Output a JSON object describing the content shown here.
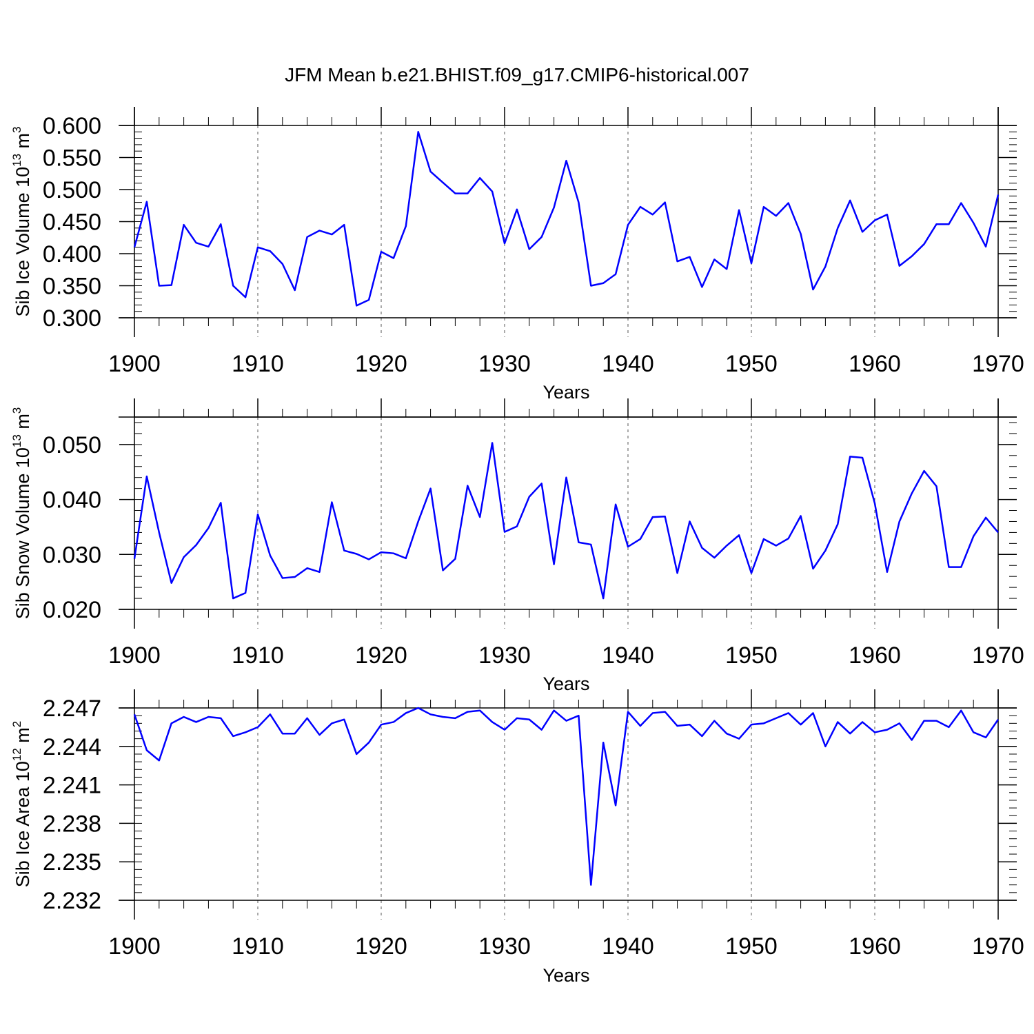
{
  "title": "JFM Mean b.e21.BHIST.f09_g17.CMIP6-historical.007",
  "colors": {
    "line": "#0000ff",
    "axis": "#000000",
    "grid": "#555555"
  },
  "chart_data": [
    {
      "type": "line",
      "ylabel": {
        "text": "Sib Ice Volume 10",
        "exp": "13",
        "unit": " m",
        "unit_exp": "3"
      },
      "xlabel": "Years",
      "xlim": [
        1900,
        1970
      ],
      "ylim": [
        0.3,
        0.6
      ],
      "yticks": [
        0.3,
        0.35,
        0.4,
        0.45,
        0.5,
        0.55,
        0.6
      ],
      "ytick_labels": [
        "0.300",
        "0.350",
        "0.400",
        "0.450",
        "0.500",
        "0.550",
        "0.600"
      ],
      "xticks": [
        1900,
        1910,
        1920,
        1930,
        1940,
        1950,
        1960,
        1970
      ],
      "xtick_labels": [
        "1900",
        "1910",
        "1920",
        "1930",
        "1940",
        "1950",
        "1960",
        "1970"
      ],
      "grid": "vertical dashed",
      "x": [
        1900,
        1901,
        1902,
        1903,
        1904,
        1905,
        1906,
        1907,
        1908,
        1909,
        1910,
        1911,
        1912,
        1913,
        1914,
        1915,
        1916,
        1917,
        1918,
        1919,
        1920,
        1921,
        1922,
        1923,
        1924,
        1925,
        1926,
        1927,
        1928,
        1929,
        1930,
        1931,
        1932,
        1933,
        1934,
        1935,
        1936,
        1937,
        1938,
        1939,
        1940,
        1941,
        1942,
        1943,
        1944,
        1945,
        1946,
        1947,
        1948,
        1949,
        1950,
        1951,
        1952,
        1953,
        1954,
        1955,
        1956,
        1957,
        1958,
        1959,
        1960,
        1961,
        1962,
        1963,
        1964,
        1965,
        1966,
        1967,
        1968,
        1969,
        1970
      ],
      "series": [
        {
          "values": [
            0.41,
            0.481,
            0.35,
            0.351,
            0.445,
            0.417,
            0.411,
            0.446,
            0.35,
            0.332,
            0.41,
            0.404,
            0.384,
            0.343,
            0.426,
            0.436,
            0.43,
            0.445,
            0.319,
            0.328,
            0.403,
            0.393,
            0.443,
            0.59,
            0.528,
            0.511,
            0.494,
            0.494,
            0.518,
            0.497,
            0.416,
            0.469,
            0.407,
            0.426,
            0.472,
            0.545,
            0.48,
            0.35,
            0.354,
            0.368,
            0.445,
            0.473,
            0.461,
            0.48,
            0.388,
            0.395,
            0.348,
            0.391,
            0.376,
            0.468,
            0.385,
            0.473,
            0.459,
            0.479,
            0.431,
            0.344,
            0.38,
            0.44,
            0.483,
            0.434,
            0.452,
            0.461,
            0.381,
            0.396,
            0.415,
            0.446,
            0.446,
            0.479,
            0.448,
            0.411,
            0.492
          ]
        }
      ]
    },
    {
      "type": "line",
      "ylabel": {
        "text": "Sib Snow Volume 10",
        "exp": "13",
        "unit": " m",
        "unit_exp": "3"
      },
      "xlabel": "Years",
      "xlim": [
        1900,
        1970
      ],
      "ylim": [
        0.02,
        0.055
      ],
      "yticks": [
        0.02,
        0.03,
        0.04,
        0.05
      ],
      "ytick_labels": [
        "0.020",
        "0.030",
        "0.040",
        "0.050"
      ],
      "xticks": [
        1900,
        1910,
        1920,
        1930,
        1940,
        1950,
        1960,
        1970
      ],
      "xtick_labels": [
        "1900",
        "1910",
        "1920",
        "1930",
        "1940",
        "1950",
        "1960",
        "1970"
      ],
      "grid": "vertical dashed",
      "x": [
        1900,
        1901,
        1902,
        1903,
        1904,
        1905,
        1906,
        1907,
        1908,
        1909,
        1910,
        1911,
        1912,
        1913,
        1914,
        1915,
        1916,
        1917,
        1918,
        1919,
        1920,
        1921,
        1922,
        1923,
        1924,
        1925,
        1926,
        1927,
        1928,
        1929,
        1930,
        1931,
        1932,
        1933,
        1934,
        1935,
        1936,
        1937,
        1938,
        1939,
        1940,
        1941,
        1942,
        1943,
        1944,
        1945,
        1946,
        1947,
        1948,
        1949,
        1950,
        1951,
        1952,
        1953,
        1954,
        1955,
        1956,
        1957,
        1958,
        1959,
        1960,
        1961,
        1962,
        1963,
        1964,
        1965,
        1966,
        1967,
        1968,
        1969,
        1970
      ],
      "series": [
        {
          "values": [
            0.0292,
            0.0442,
            0.034,
            0.0248,
            0.0295,
            0.0317,
            0.0348,
            0.0394,
            0.022,
            0.023,
            0.0373,
            0.0298,
            0.0257,
            0.0259,
            0.0275,
            0.0268,
            0.0395,
            0.0307,
            0.0301,
            0.0291,
            0.0304,
            0.0302,
            0.0293,
            0.036,
            0.042,
            0.0271,
            0.0292,
            0.0425,
            0.0368,
            0.0503,
            0.0341,
            0.0351,
            0.0405,
            0.0429,
            0.0282,
            0.044,
            0.0322,
            0.0318,
            0.022,
            0.0391,
            0.0314,
            0.0328,
            0.0368,
            0.0369,
            0.0266,
            0.036,
            0.0312,
            0.0294,
            0.0316,
            0.0335,
            0.0266,
            0.0328,
            0.0316,
            0.0329,
            0.037,
            0.0274,
            0.0307,
            0.0355,
            0.0478,
            0.0476,
            0.0393,
            0.0268,
            0.036,
            0.0411,
            0.0452,
            0.0424,
            0.0277,
            0.0277,
            0.0333,
            0.0367,
            0.034
          ]
        }
      ]
    },
    {
      "type": "line",
      "ylabel": {
        "text": "Sib Ice Area 10",
        "exp": "12",
        "unit": " m",
        "unit_exp": "2"
      },
      "xlabel": "Years",
      "xlim": [
        1900,
        1970
      ],
      "ylim": [
        2.232,
        2.247
      ],
      "yticks": [
        2.232,
        2.235,
        2.238,
        2.241,
        2.244,
        2.247
      ],
      "ytick_labels": [
        "2.232",
        "2.235",
        "2.238",
        "2.241",
        "2.244",
        "2.247"
      ],
      "xticks": [
        1900,
        1910,
        1920,
        1930,
        1940,
        1950,
        1960,
        1970
      ],
      "xtick_labels": [
        "1900",
        "1910",
        "1920",
        "1930",
        "1940",
        "1950",
        "1960",
        "1970"
      ],
      "grid": "vertical dashed",
      "x": [
        1900,
        1901,
        1902,
        1903,
        1904,
        1905,
        1906,
        1907,
        1908,
        1909,
        1910,
        1911,
        1912,
        1913,
        1914,
        1915,
        1916,
        1917,
        1918,
        1919,
        1920,
        1921,
        1922,
        1923,
        1924,
        1925,
        1926,
        1927,
        1928,
        1929,
        1930,
        1931,
        1932,
        1933,
        1934,
        1935,
        1936,
        1937,
        1938,
        1939,
        1940,
        1941,
        1942,
        1943,
        1944,
        1945,
        1946,
        1947,
        1948,
        1949,
        1950,
        1951,
        1952,
        1953,
        1954,
        1955,
        1956,
        1957,
        1958,
        1959,
        1960,
        1961,
        1962,
        1963,
        1964,
        1965,
        1966,
        1967,
        1968,
        1969,
        1970
      ],
      "series": [
        {
          "values": [
            2.2465,
            2.2437,
            2.2429,
            2.2458,
            2.2463,
            2.2459,
            2.2463,
            2.2462,
            2.2448,
            2.2451,
            2.2455,
            2.2465,
            2.245,
            2.245,
            2.2462,
            2.2449,
            2.2458,
            2.2461,
            2.2434,
            2.2443,
            2.2457,
            2.2459,
            2.2466,
            2.247,
            2.2465,
            2.2463,
            2.2462,
            2.2467,
            2.2468,
            2.2459,
            2.2453,
            2.2462,
            2.2461,
            2.2453,
            2.2468,
            2.246,
            2.2464,
            2.2332,
            2.2443,
            2.2394,
            2.2467,
            2.2456,
            2.2466,
            2.2467,
            2.2456,
            2.2457,
            2.2448,
            2.246,
            2.245,
            2.2446,
            2.2457,
            2.2458,
            2.2462,
            2.2466,
            2.2457,
            2.2466,
            2.244,
            2.2459,
            2.245,
            2.2459,
            2.2451,
            2.2453,
            2.2458,
            2.2445,
            2.246,
            2.246,
            2.2455,
            2.2468,
            2.2451,
            2.2447,
            2.2461
          ]
        }
      ]
    }
  ]
}
